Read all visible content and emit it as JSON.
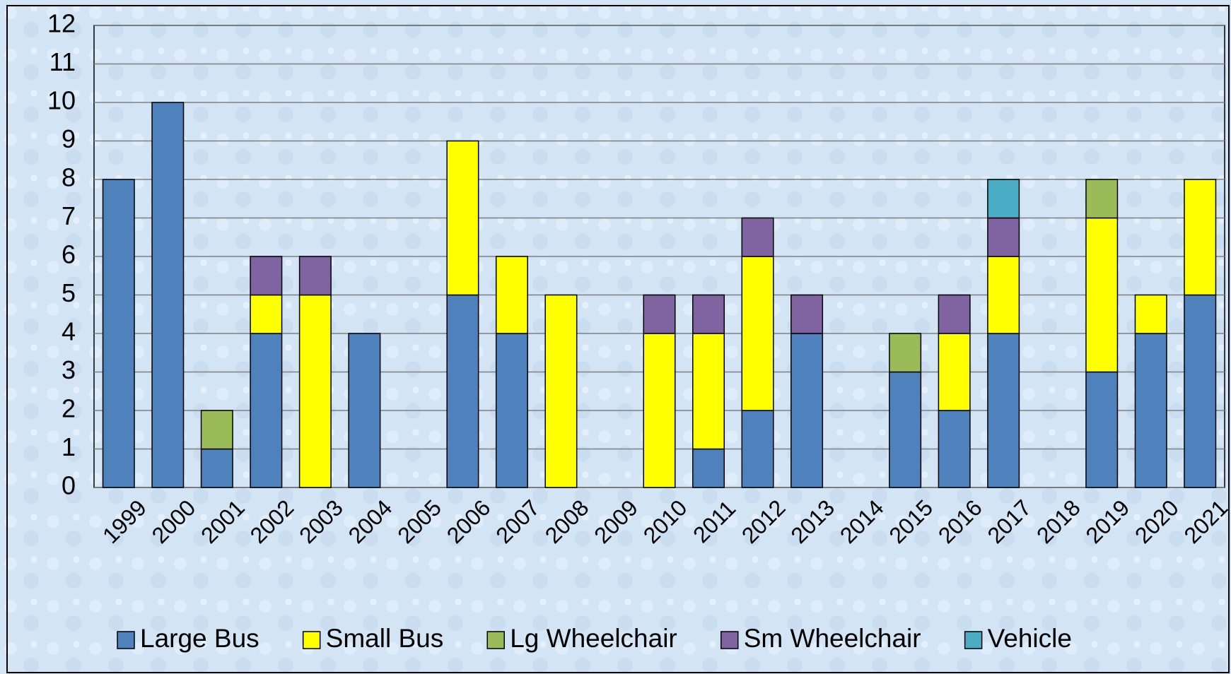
{
  "chart_data": {
    "type": "stacked-bar",
    "categories": [
      "1999",
      "2000",
      "2001",
      "2002",
      "2003",
      "2004",
      "2005",
      "2006",
      "2007",
      "2008",
      "2009",
      "2010",
      "2011",
      "2012",
      "2013",
      "2014",
      "2015",
      "2016",
      "2017",
      "2018",
      "2019",
      "2020",
      "2021"
    ],
    "series": [
      {
        "name": "Large Bus",
        "color": "#4f81bd",
        "values": [
          8,
          10,
          1,
          4,
          0,
          4,
          0,
          5,
          4,
          0,
          0,
          0,
          1,
          2,
          4,
          0,
          3,
          2,
          4,
          0,
          3,
          4,
          5
        ]
      },
      {
        "name": "Small Bus",
        "color": "#ffff00",
        "values": [
          0,
          0,
          0,
          1,
          5,
          0,
          0,
          4,
          2,
          5,
          0,
          4,
          3,
          4,
          0,
          0,
          0,
          2,
          2,
          0,
          4,
          1,
          3
        ]
      },
      {
        "name": "Lg Wheelchair",
        "color": "#9bbb59",
        "values": [
          0,
          0,
          1,
          0,
          0,
          0,
          0,
          0,
          0,
          0,
          0,
          0,
          0,
          0,
          0,
          0,
          1,
          0,
          0,
          0,
          1,
          0,
          0
        ]
      },
      {
        "name": "Sm Wheelchair",
        "color": "#8064a2",
        "values": [
          0,
          0,
          0,
          1,
          1,
          0,
          0,
          0,
          0,
          0,
          0,
          1,
          1,
          1,
          1,
          0,
          0,
          1,
          1,
          0,
          0,
          0,
          0
        ]
      },
      {
        "name": "Vehicle",
        "color": "#4bacc6",
        "values": [
          0,
          0,
          0,
          0,
          0,
          0,
          0,
          0,
          0,
          0,
          0,
          0,
          0,
          0,
          0,
          0,
          0,
          0,
          1,
          0,
          0,
          0,
          0
        ]
      }
    ],
    "ylim": [
      0,
      12
    ],
    "yticks": [
      0,
      1,
      2,
      3,
      4,
      5,
      6,
      7,
      8,
      9,
      10,
      11,
      12
    ],
    "grid": true,
    "legend": "bottom"
  }
}
